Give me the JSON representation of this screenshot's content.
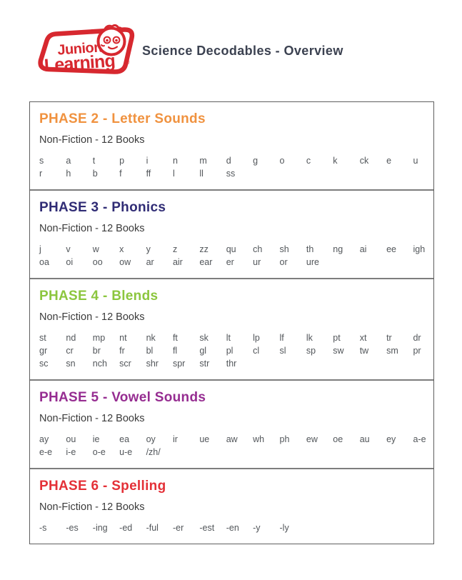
{
  "logo": {
    "line1": "Junior",
    "line2": "Learning",
    "registered": "®",
    "brand_color": "#d7282f"
  },
  "header": {
    "title": "Science Decodables - Overview"
  },
  "phases": [
    {
      "title": "PHASE 2 - Letter Sounds",
      "color": "#f0923f",
      "subtitle": "Non-Fiction - 12 Books",
      "rows": [
        [
          "s",
          "a",
          "t",
          "p",
          "i",
          "n",
          "m",
          "d",
          "g",
          "o",
          "c",
          "k",
          "ck",
          "e",
          "u"
        ],
        [
          "r",
          "h",
          "b",
          "f",
          "ff",
          "l",
          "ll",
          "ss"
        ]
      ]
    },
    {
      "title": "PHASE 3 - Phonics",
      "color": "#302c75",
      "subtitle": "Non-Fiction - 12 Books",
      "rows": [
        [
          "j",
          "v",
          "w",
          "x",
          "y",
          "z",
          "zz",
          "qu",
          "ch",
          "sh",
          "th",
          "ng",
          "ai",
          "ee",
          "igh"
        ],
        [
          "oa",
          "oi",
          "oo",
          "ow",
          "ar",
          "air",
          "ear",
          "er",
          "ur",
          "or",
          "ure"
        ]
      ]
    },
    {
      "title": "PHASE 4 - Blends",
      "color": "#8cc63e",
      "subtitle": "Non-Fiction - 12 Books",
      "rows": [
        [
          "st",
          "nd",
          "mp",
          "nt",
          "nk",
          "ft",
          "sk",
          "lt",
          "lp",
          "lf",
          "lk",
          "pt",
          "xt",
          "tr",
          "dr"
        ],
        [
          "gr",
          "cr",
          "br",
          "fr",
          "bl",
          "fl",
          "gl",
          "pl",
          "cl",
          "sl",
          "sp",
          "sw",
          "tw",
          "sm",
          "pr"
        ],
        [
          "sc",
          "sn",
          "nch",
          "scr",
          "shr",
          "spr",
          "str",
          "thr"
        ]
      ]
    },
    {
      "title": "PHASE 5 - Vowel Sounds",
      "color": "#962d91",
      "subtitle": "Non-Fiction - 12 Books",
      "rows": [
        [
          "ay",
          "ou",
          "ie",
          "ea",
          "oy",
          "ir",
          "ue",
          "aw",
          "wh",
          "ph",
          "ew",
          "oe",
          "au",
          "ey",
          "a-e"
        ],
        [
          "e-e",
          "i-e",
          "o-e",
          "u-e",
          "/zh/"
        ]
      ]
    },
    {
      "title": "PHASE 6 - Spelling",
      "color": "#e43037",
      "subtitle": "Non-Fiction - 12 Books",
      "rows": [
        [
          "-s",
          "-es",
          "-ing",
          "-ed",
          "-ful",
          "-er",
          "-est",
          "-en",
          "-y",
          "-ly"
        ]
      ]
    }
  ]
}
